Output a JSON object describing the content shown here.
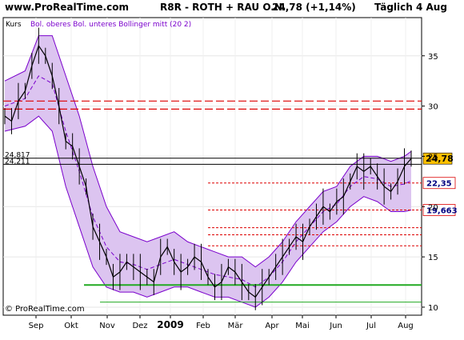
{
  "header": {
    "site": "www.ProRealTime.com",
    "instrument": "R8R - ROTH + RAU O.N.",
    "quote": "24,78 (+1,14%)",
    "period": "Täglich  4 Aug"
  },
  "legend": {
    "kurs": "Kurs",
    "bollinger": "Bol. oberes Bol. unteres Bollinger mitt (20 2)"
  },
  "copyright": "© ProRealTime.com",
  "colors": {
    "band_fill": "#dcc4f0",
    "band_line": "#7a00cc",
    "price": "#000000",
    "dashed_red": "#dd0000",
    "support_green": "#22aa22",
    "price_badge": "#ffc000"
  },
  "chart_data": {
    "type": "candlestick-with-bollinger",
    "x_ticks": [
      "Sep",
      "Okt",
      "Nov",
      "Dez",
      "2009",
      "Feb",
      "Mär",
      "Apr",
      "Mai",
      "Jun",
      "Jul",
      "Aug"
    ],
    "y_ticks": [
      10,
      15,
      20,
      25,
      30,
      35
    ],
    "ylim": [
      9.2,
      38.8
    ],
    "horizontal_levels": [
      {
        "value": 30.5,
        "style": "dashed-red",
        "label": ""
      },
      {
        "value": 29.7,
        "style": "dashed-red",
        "label": ""
      },
      {
        "value": 24.817,
        "style": "solid-black",
        "label": "24,817"
      },
      {
        "value": 24.211,
        "style": "solid-black",
        "label": "24,211"
      },
      {
        "value": 22.35,
        "style": "dotted-red",
        "label": "22,35"
      },
      {
        "value": 19.663,
        "style": "dotted-red",
        "label": "19,663"
      },
      {
        "value": 17.9,
        "style": "dotted-red",
        "label": ""
      },
      {
        "value": 17.2,
        "style": "dotted-red",
        "label": ""
      },
      {
        "value": 16.1,
        "style": "dotted-red",
        "label": ""
      },
      {
        "value": 12.2,
        "style": "solid-green-thick",
        "label": ""
      },
      {
        "value": 10.5,
        "style": "solid-green-thin",
        "label": ""
      }
    ],
    "last_price": {
      "value": 24.78,
      "label": "24,78"
    },
    "price_path": [
      [
        0,
        29.0
      ],
      [
        1,
        28.5
      ],
      [
        2,
        30.5
      ],
      [
        3,
        31.5
      ],
      [
        4,
        34.0
      ],
      [
        5,
        36.0
      ],
      [
        6,
        35.0
      ],
      [
        7,
        33.0
      ],
      [
        8,
        30.0
      ],
      [
        9,
        26.5
      ],
      [
        10,
        26.0
      ],
      [
        11,
        24.0
      ],
      [
        12,
        22.0
      ],
      [
        13,
        18.0
      ],
      [
        14,
        16.5
      ],
      [
        15,
        15.0
      ],
      [
        16,
        13.0
      ],
      [
        17,
        13.5
      ],
      [
        18,
        14.5
      ],
      [
        19,
        14.0
      ],
      [
        20,
        13.5
      ],
      [
        21,
        13.0
      ],
      [
        22,
        12.5
      ],
      [
        23,
        15.0
      ],
      [
        24,
        16.0
      ],
      [
        25,
        14.5
      ],
      [
        26,
        13.5
      ],
      [
        27,
        14.0
      ],
      [
        28,
        15.0
      ],
      [
        29,
        14.5
      ],
      [
        30,
        13.0
      ],
      [
        31,
        12.0
      ],
      [
        32,
        12.5
      ],
      [
        33,
        14.0
      ],
      [
        34,
        13.5
      ],
      [
        35,
        12.5
      ],
      [
        36,
        11.5
      ],
      [
        37,
        11.0
      ],
      [
        38,
        12.0
      ],
      [
        39,
        13.0
      ],
      [
        40,
        14.0
      ],
      [
        41,
        15.0
      ],
      [
        42,
        16.0
      ],
      [
        43,
        17.0
      ],
      [
        44,
        16.5
      ],
      [
        45,
        18.0
      ],
      [
        46,
        19.0
      ],
      [
        47,
        20.0
      ],
      [
        48,
        19.5
      ],
      [
        49,
        20.5
      ],
      [
        50,
        21.0
      ],
      [
        51,
        22.5
      ],
      [
        52,
        24.0
      ],
      [
        53,
        23.5
      ],
      [
        54,
        24.0
      ],
      [
        55,
        23.0
      ],
      [
        56,
        22.0
      ],
      [
        57,
        21.5
      ],
      [
        58,
        22.5
      ],
      [
        59,
        24.0
      ],
      [
        60,
        24.78
      ]
    ],
    "upper_band": [
      [
        0,
        32.5
      ],
      [
        3,
        33.5
      ],
      [
        5,
        37.0
      ],
      [
        7,
        37.0
      ],
      [
        9,
        33.0
      ],
      [
        11,
        29.0
      ],
      [
        13,
        24.0
      ],
      [
        15,
        20.0
      ],
      [
        17,
        17.5
      ],
      [
        19,
        17.0
      ],
      [
        21,
        16.5
      ],
      [
        23,
        17.0
      ],
      [
        25,
        17.5
      ],
      [
        27,
        16.5
      ],
      [
        29,
        16.0
      ],
      [
        31,
        15.5
      ],
      [
        33,
        15.0
      ],
      [
        35,
        15.0
      ],
      [
        37,
        14.0
      ],
      [
        39,
        15.0
      ],
      [
        41,
        16.5
      ],
      [
        43,
        18.5
      ],
      [
        45,
        20.0
      ],
      [
        47,
        21.5
      ],
      [
        49,
        22.0
      ],
      [
        51,
        24.0
      ],
      [
        53,
        25.0
      ],
      [
        55,
        25.0
      ],
      [
        57,
        24.5
      ],
      [
        59,
        25.0
      ],
      [
        60,
        25.5
      ]
    ],
    "lower_band": [
      [
        0,
        27.5
      ],
      [
        3,
        28.0
      ],
      [
        5,
        29.0
      ],
      [
        7,
        27.5
      ],
      [
        9,
        22.0
      ],
      [
        11,
        18.0
      ],
      [
        13,
        14.0
      ],
      [
        15,
        12.0
      ],
      [
        17,
        11.5
      ],
      [
        19,
        11.5
      ],
      [
        21,
        11.0
      ],
      [
        23,
        11.5
      ],
      [
        25,
        12.0
      ],
      [
        27,
        12.0
      ],
      [
        29,
        11.5
      ],
      [
        31,
        11.0
      ],
      [
        33,
        11.0
      ],
      [
        35,
        10.5
      ],
      [
        37,
        10.0
      ],
      [
        39,
        11.0
      ],
      [
        41,
        12.5
      ],
      [
        43,
        14.5
      ],
      [
        45,
        16.0
      ],
      [
        47,
        17.5
      ],
      [
        49,
        18.5
      ],
      [
        51,
        20.0
      ],
      [
        53,
        21.0
      ],
      [
        55,
        20.5
      ],
      [
        57,
        19.5
      ],
      [
        59,
        19.5
      ],
      [
        60,
        19.663
      ]
    ]
  }
}
